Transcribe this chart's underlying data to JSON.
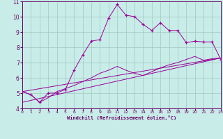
{
  "title": "",
  "xlabel": "Windchill (Refroidissement éolien,°C)",
  "background_color": "#c8ece8",
  "line_color": "#990099",
  "xlim": [
    0,
    23
  ],
  "ylim": [
    4,
    11
  ],
  "yticks": [
    4,
    5,
    6,
    7,
    8,
    9,
    10,
    11
  ],
  "xticks": [
    0,
    1,
    2,
    3,
    4,
    5,
    6,
    7,
    8,
    9,
    10,
    11,
    12,
    13,
    14,
    15,
    16,
    17,
    18,
    19,
    20,
    21,
    22,
    23
  ],
  "series1_x": [
    0,
    1,
    2,
    3,
    4,
    5,
    6,
    7,
    8,
    9,
    10,
    11,
    12,
    13,
    14,
    15,
    16,
    17,
    18,
    19,
    20,
    21,
    22,
    23
  ],
  "series1_y": [
    5.1,
    4.9,
    4.4,
    5.0,
    5.0,
    5.25,
    6.5,
    7.5,
    8.4,
    8.5,
    9.9,
    10.8,
    10.1,
    10.0,
    9.5,
    9.1,
    9.6,
    9.1,
    9.1,
    8.3,
    8.4,
    8.35,
    8.35,
    7.2
  ],
  "series2_x": [
    0,
    1,
    2,
    3,
    4,
    5,
    6,
    7,
    8,
    9,
    10,
    11,
    12,
    13,
    14,
    15,
    16,
    17,
    18,
    19,
    20,
    21,
    22,
    23
  ],
  "series2_y": [
    5.1,
    4.9,
    4.4,
    4.7,
    5.1,
    5.3,
    5.5,
    5.75,
    6.0,
    6.3,
    6.5,
    6.75,
    6.5,
    6.3,
    6.15,
    6.4,
    6.65,
    6.85,
    7.0,
    7.2,
    7.4,
    7.15,
    7.25,
    7.3
  ],
  "series3_x": [
    0,
    23
  ],
  "series3_y": [
    5.1,
    7.3
  ],
  "series4_x": [
    0,
    23
  ],
  "series4_y": [
    4.4,
    7.3
  ]
}
